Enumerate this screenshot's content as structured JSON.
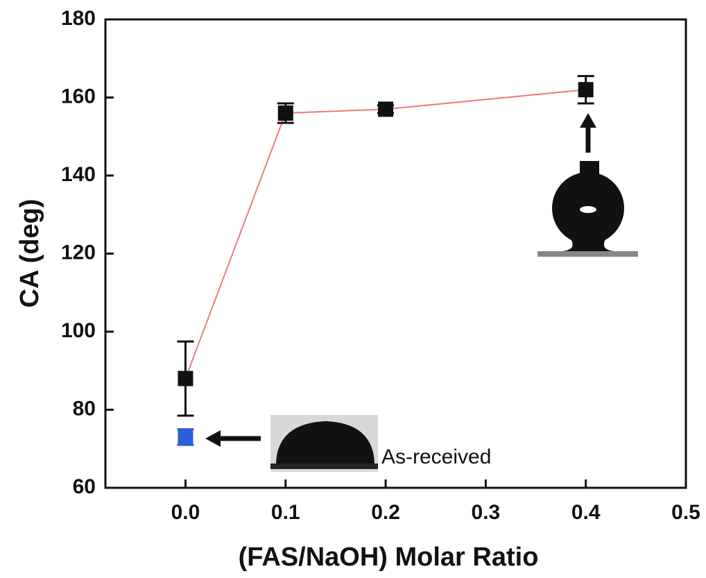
{
  "chart_data": {
    "type": "scatter",
    "x_label": "(FAS/NaOH) Molar Ratio",
    "y_label": "CA (deg)",
    "annotation": "As-received",
    "xlim": [
      -0.08,
      0.5
    ],
    "ylim": [
      60,
      180
    ],
    "xticks": [
      {
        "value": 0,
        "label": "0.0"
      },
      0.1,
      0.2,
      0.3,
      0.4,
      0.5
    ],
    "yticks": [
      60,
      80,
      100,
      120,
      140,
      160,
      180
    ],
    "series": [
      {
        "color": "#111111",
        "line_color": "#f07a7a",
        "x": [
          0,
          0.1,
          0.2,
          0.4
        ],
        "values": [
          88,
          156,
          157,
          162
        ],
        "errors": [
          9.5,
          2.5,
          1,
          3.5
        ]
      },
      {
        "color": "#2b5fd9",
        "x": [
          0
        ],
        "values": [
          73
        ],
        "errors": [
          2
        ]
      }
    ]
  }
}
